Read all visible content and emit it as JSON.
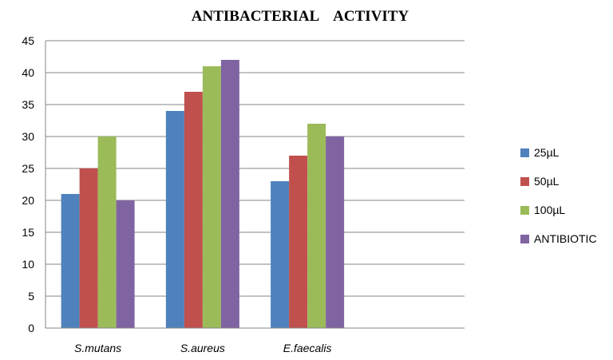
{
  "chart_data": {
    "type": "bar",
    "title": "ANTIBACTERIAL    ACTIVITY",
    "categories": [
      "S.mutans",
      "S.aureus",
      "E.faecalis",
      ""
    ],
    "series": [
      {
        "name": "25µL",
        "values": [
          21,
          34,
          23,
          null
        ],
        "color": "#4F81BD"
      },
      {
        "name": "50µL",
        "values": [
          25,
          37,
          27,
          null
        ],
        "color": "#C0504D"
      },
      {
        "name": "100µL",
        "values": [
          30,
          41,
          32,
          null
        ],
        "color": "#9BBB59"
      },
      {
        "name": "ANTIBIOTIC",
        "values": [
          20,
          42,
          30,
          null
        ],
        "color": "#8064A2"
      }
    ],
    "ylim": [
      0,
      45
    ],
    "yticks": [
      "0",
      "5",
      "10",
      "15",
      "20",
      "25",
      "30",
      "35",
      "40",
      "45"
    ],
    "grid": true,
    "legend": "right"
  }
}
